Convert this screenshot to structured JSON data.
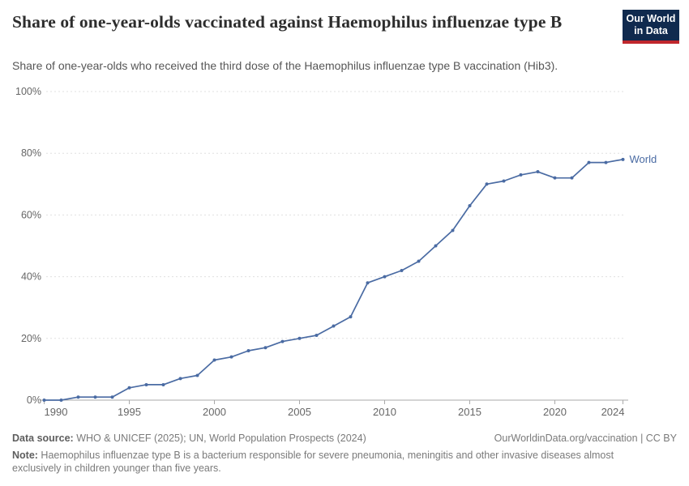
{
  "header": {
    "title": "Share of one-year-olds vaccinated against Haemophilus influenzae type B",
    "subtitle": "Share of one-year-olds who received the third dose of the Haemophilus influenzae type B vaccination (Hib3).",
    "logo": {
      "line1": "Our World",
      "line2": "in Data"
    }
  },
  "chart_data": {
    "type": "line",
    "title": "Share of one-year-olds vaccinated against Haemophilus influenzae type B",
    "x": [
      1990,
      1991,
      1992,
      1993,
      1994,
      1995,
      1996,
      1997,
      1998,
      1999,
      2000,
      2001,
      2002,
      2003,
      2004,
      2005,
      2006,
      2007,
      2008,
      2009,
      2010,
      2011,
      2012,
      2013,
      2014,
      2015,
      2016,
      2017,
      2018,
      2019,
      2020,
      2021,
      2022,
      2023,
      2024
    ],
    "series": [
      {
        "name": "World",
        "values": [
          0,
          0,
          1,
          1,
          1,
          4,
          5,
          5,
          7,
          8,
          13,
          14,
          16,
          17,
          19,
          20,
          21,
          24,
          27,
          38,
          40,
          42,
          45,
          50,
          55,
          63,
          70,
          71,
          73,
          74,
          72,
          72,
          77,
          77,
          78
        ]
      }
    ],
    "x_ticks": [
      1990,
      1995,
      2000,
      2005,
      2010,
      2015,
      2020,
      2024
    ],
    "y_ticks": [
      0,
      20,
      40,
      60,
      80,
      100
    ],
    "y_tick_suffix": "%",
    "xlim": [
      1990,
      2024
    ],
    "ylim": [
      0,
      100
    ],
    "grid": true,
    "legend": "end-of-line-label"
  },
  "footer": {
    "source_label": "Data source:",
    "source_text": " WHO & UNICEF (2025); UN, World Population Prospects (2024)",
    "link_text": "OurWorldinData.org/vaccination | CC BY",
    "note_label": "Note:",
    "note_text": " Haemophilus influenzae type B is a bacterium responsible for severe pneumonia, meningitis and other invasive diseases almost exclusively in children younger than five years."
  },
  "colors": {
    "line": "#4a6ba3",
    "grid": "#e0e0e0",
    "axis": "#a9a9a9",
    "tick_label": "#666666",
    "logo_bg": "#102a4e",
    "logo_stripe": "#c0272d"
  }
}
